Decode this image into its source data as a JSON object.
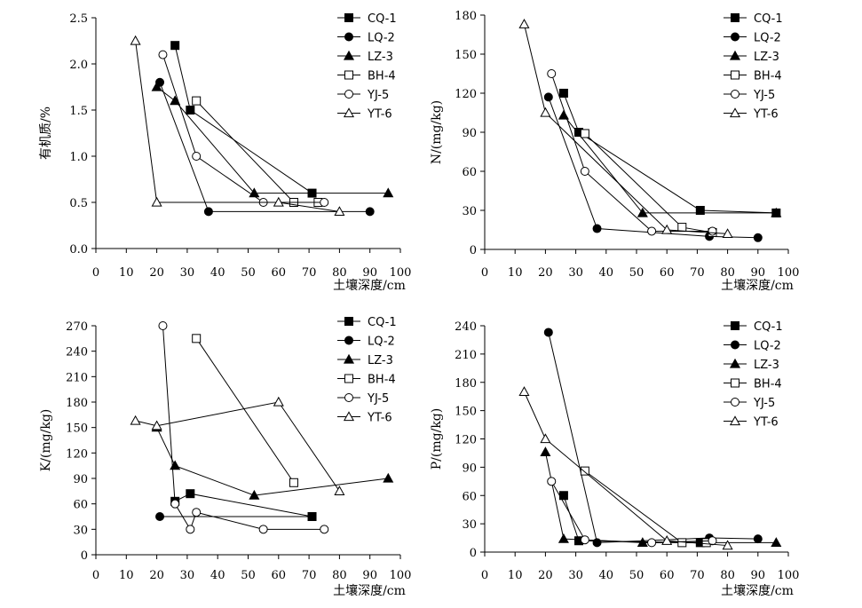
{
  "chart_data": [
    {
      "type": "line",
      "panel": "organic-matter",
      "ylabel": "有机质/%",
      "xlabel": "土壤深度/cm",
      "xlim": [
        0,
        100
      ],
      "ylim": [
        0,
        2.5
      ],
      "xticks": [
        0,
        10,
        20,
        30,
        40,
        50,
        60,
        70,
        80,
        90,
        100
      ],
      "yticks": [
        "0.0",
        "0.5",
        "1.0",
        "1.5",
        "2.0",
        "2.5"
      ],
      "series": [
        {
          "name": "CQ-1",
          "marker": "filled-square",
          "points": [
            [
              26,
              2.2
            ],
            [
              31,
              1.5
            ],
            [
              71,
              0.6
            ]
          ]
        },
        {
          "name": "LQ-2",
          "marker": "filled-circle",
          "points": [
            [
              21,
              1.8
            ],
            [
              37,
              0.4
            ],
            [
              90,
              0.4
            ]
          ]
        },
        {
          "name": "LZ-3",
          "marker": "filled-triangle",
          "points": [
            [
              20,
              1.75
            ],
            [
              26,
              1.6
            ],
            [
              52,
              0.6
            ],
            [
              96,
              0.6
            ]
          ]
        },
        {
          "name": "BH-4",
          "marker": "open-square",
          "points": [
            [
              33,
              1.6
            ],
            [
              65,
              0.5
            ],
            [
              73,
              0.5
            ]
          ]
        },
        {
          "name": "YJ-5",
          "marker": "open-circle",
          "points": [
            [
              22,
              2.1
            ],
            [
              33,
              1.0
            ],
            [
              55,
              0.5
            ],
            [
              75,
              0.5
            ]
          ]
        },
        {
          "name": "YT-6",
          "marker": "open-triangle",
          "points": [
            [
              13,
              2.25
            ],
            [
              20,
              0.5
            ],
            [
              60,
              0.5
            ],
            [
              80,
              0.4
            ]
          ]
        }
      ]
    },
    {
      "type": "line",
      "panel": "nitrogen",
      "ylabel": "N/(mg/kg)",
      "xlabel": "土壤深度/cm",
      "xlim": [
        0,
        100
      ],
      "ylim": [
        0,
        180
      ],
      "xticks": [
        0,
        10,
        20,
        30,
        40,
        50,
        60,
        70,
        80,
        90,
        100
      ],
      "yticks": [
        "0",
        "30",
        "60",
        "90",
        "120",
        "150",
        "180"
      ],
      "series": [
        {
          "name": "CQ-1",
          "marker": "filled-square",
          "points": [
            [
              26,
              120
            ],
            [
              31,
              90
            ],
            [
              71,
              30
            ],
            [
              96,
              28
            ]
          ]
        },
        {
          "name": "LQ-2",
          "marker": "filled-circle",
          "points": [
            [
              21,
              117
            ],
            [
              37,
              16
            ],
            [
              74,
              10
            ],
            [
              90,
              9
            ]
          ]
        },
        {
          "name": "LZ-3",
          "marker": "filled-triangle",
          "points": [
            [
              26,
              103
            ],
            [
              52,
              28
            ],
            [
              96,
              28
            ]
          ]
        },
        {
          "name": "BH-4",
          "marker": "open-square",
          "points": [
            [
              33,
              89
            ],
            [
              65,
              17
            ],
            [
              75,
              13
            ]
          ]
        },
        {
          "name": "YJ-5",
          "marker": "open-circle",
          "points": [
            [
              22,
              135
            ],
            [
              33,
              60
            ],
            [
              55,
              14
            ],
            [
              75,
              14
            ]
          ]
        },
        {
          "name": "YT-6",
          "marker": "open-triangle",
          "points": [
            [
              13,
              173
            ],
            [
              20,
              105
            ],
            [
              60,
              15
            ],
            [
              80,
              12
            ]
          ]
        }
      ]
    },
    {
      "type": "line",
      "panel": "potassium",
      "ylabel": "K/(mg/kg)",
      "xlabel": "土壤深度/cm",
      "xlim": [
        0,
        100
      ],
      "ylim": [
        0,
        270
      ],
      "xticks": [
        0,
        10,
        20,
        30,
        40,
        50,
        60,
        70,
        80,
        90,
        100
      ],
      "yticks": [
        "0",
        "30",
        "60",
        "90",
        "120",
        "150",
        "180",
        "210",
        "240",
        "270"
      ],
      "series": [
        {
          "name": "CQ-1",
          "marker": "filled-square",
          "points": [
            [
              26,
              63
            ],
            [
              31,
              72
            ],
            [
              71,
              45
            ]
          ]
        },
        {
          "name": "LQ-2",
          "marker": "filled-circle",
          "points": [
            [
              21,
              45
            ],
            [
              71,
              45
            ]
          ]
        },
        {
          "name": "LZ-3",
          "marker": "filled-triangle",
          "points": [
            [
              20,
              150
            ],
            [
              26,
              105
            ],
            [
              52,
              70
            ],
            [
              96,
              90
            ]
          ]
        },
        {
          "name": "BH-4",
          "marker": "open-square",
          "points": [
            [
              33,
              255
            ],
            [
              65,
              85
            ]
          ]
        },
        {
          "name": "YJ-5",
          "marker": "open-circle",
          "points": [
            [
              22,
              270
            ],
            [
              26,
              60
            ],
            [
              31,
              30
            ],
            [
              33,
              50
            ],
            [
              55,
              30
            ],
            [
              75,
              30
            ]
          ]
        },
        {
          "name": "YT-6",
          "marker": "open-triangle",
          "points": [
            [
              13,
              158
            ],
            [
              20,
              152
            ],
            [
              60,
              180
            ],
            [
              80,
              75
            ]
          ]
        }
      ]
    },
    {
      "type": "line",
      "panel": "phosphorus",
      "ylabel": "P/(mg/kg)",
      "xlabel": "土壤深度/cm",
      "xlim": [
        0,
        100
      ],
      "ylim": [
        0,
        240
      ],
      "xticks": [
        0,
        10,
        20,
        30,
        40,
        50,
        60,
        70,
        80,
        90,
        100
      ],
      "yticks": [
        "0",
        "30",
        "60",
        "90",
        "120",
        "150",
        "180",
        "210",
        "240"
      ],
      "series": [
        {
          "name": "CQ-1",
          "marker": "filled-square",
          "points": [
            [
              26,
              60
            ],
            [
              31,
              12
            ],
            [
              71,
              10
            ]
          ]
        },
        {
          "name": "LQ-2",
          "marker": "filled-circle",
          "points": [
            [
              21,
              233
            ],
            [
              37,
              10
            ],
            [
              74,
              15
            ],
            [
              90,
              14
            ]
          ]
        },
        {
          "name": "LZ-3",
          "marker": "filled-triangle",
          "points": [
            [
              20,
              106
            ],
            [
              26,
              14
            ],
            [
              52,
              10
            ],
            [
              96,
              10
            ]
          ]
        },
        {
          "name": "BH-4",
          "marker": "open-square",
          "points": [
            [
              33,
              86
            ],
            [
              65,
              10
            ],
            [
              73,
              10
            ]
          ]
        },
        {
          "name": "YJ-5",
          "marker": "open-circle",
          "points": [
            [
              22,
              75
            ],
            [
              33,
              13
            ],
            [
              55,
              10
            ],
            [
              75,
              12
            ]
          ]
        },
        {
          "name": "YT-6",
          "marker": "open-triangle",
          "points": [
            [
              13,
              170
            ],
            [
              20,
              120
            ],
            [
              60,
              12
            ],
            [
              80,
              7
            ]
          ]
        }
      ]
    }
  ]
}
